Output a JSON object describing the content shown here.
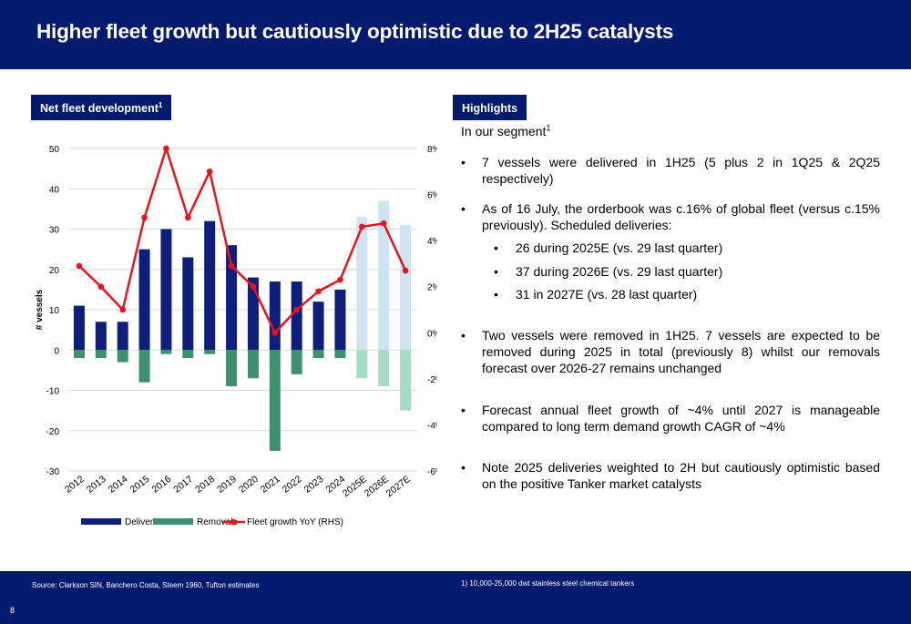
{
  "header": {
    "title": "Higher fleet growth but cautiously optimistic due to 2H25 catalysts"
  },
  "left_panel": {
    "tag": "Net fleet development",
    "tag_sup": "1"
  },
  "right_panel": {
    "tag": "Highlights",
    "segment_label": "In our segment",
    "segment_sup": "1",
    "bullets": [
      "7 vessels were delivered in 1H25 (5 plus 2 in 1Q25 & 2Q25 respectively)",
      "As of 16 July, the orderbook was c.16% of global fleet (versus c.15% previously). Scheduled deliveries:",
      "Two vessels were removed in 1H25. 7 vessels are expected to be removed during 2025 in total (previously 8) whilst our removals forecast over 2026-27 remains unchanged",
      "Forecast annual fleet growth of ~4% until 2027 is manageable compared to long term demand growth CAGR of ~4%",
      "Note 2025 deliveries weighted to 2H but cautiously optimistic based on the positive Tanker market catalysts"
    ],
    "sub_bullets": [
      "26 during 2025E (vs. 29 last quarter)",
      "37 during 2026E (vs. 29 last quarter)",
      "31 in 2027E (vs. 28 last quarter)"
    ],
    "bullet_glyph": "•"
  },
  "chart_data": {
    "type": "bar",
    "categories": [
      "2012",
      "2013",
      "2014",
      "2015",
      "2016",
      "2017",
      "2018",
      "2019",
      "2020",
      "2021",
      "2022",
      "2023",
      "2024",
      "2025E",
      "2026E",
      "2027E"
    ],
    "series": [
      {
        "name": "Deliveries",
        "type": "bar",
        "values": [
          11,
          7,
          7,
          25,
          30,
          23,
          32,
          26,
          18,
          17,
          17,
          12,
          15,
          33,
          37,
          31
        ]
      },
      {
        "name": "Removals",
        "type": "bar",
        "values": [
          -2,
          -2,
          -3,
          -8,
          -1,
          -2,
          -1,
          -9,
          -7,
          -25,
          -6,
          -2,
          -2,
          -7,
          -9,
          -15
        ]
      },
      {
        "name": "Fleet growth YoY (RHS)",
        "type": "line",
        "axis": "right",
        "values": [
          2.9,
          2.0,
          1.0,
          5.0,
          8.0,
          5.0,
          7.0,
          2.9,
          2.0,
          0.0,
          1.0,
          1.8,
          2.3,
          4.6,
          4.75,
          2.7
        ]
      }
    ],
    "estimate_from_index": 13,
    "ylabel": "# vessels",
    "ylim": [
      -30,
      50
    ],
    "yticks": [
      -30,
      -20,
      -10,
      0,
      10,
      20,
      30,
      40,
      50
    ],
    "y2lim": [
      -6,
      8
    ],
    "y2ticks": [
      "-6%",
      "-4%",
      "-2%",
      "0%",
      "2%",
      "4%",
      "6%",
      "8%"
    ],
    "grid": true,
    "legend_position": "bottom-left",
    "colors": {
      "deliveries": "#0e1e7a",
      "deliveries_estimate": "#cfe3f3",
      "removals": "#3d9070",
      "removals_estimate": "#a6dcc6",
      "growth_line": "#e8141c",
      "grid": "#d9d9d9"
    }
  },
  "footer": {
    "source": "Source: Clarkson SIN, Banchero Costa, Steem 1960, Tufton estimates",
    "footnote": "1) 10,000-25,000 dwt stainless steel chemical tankers",
    "page_number": "8"
  }
}
